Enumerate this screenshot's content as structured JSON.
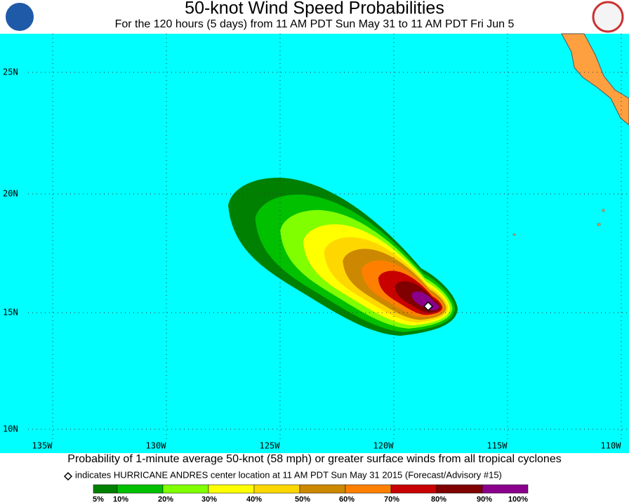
{
  "header": {
    "title": "50-knot Wind Speed Probabilities",
    "subtitle": "For the 120 hours (5 days) from 11 AM PDT Sun May 31 to 11 AM PDT Fri Jun 5"
  },
  "map": {
    "lat_labels": [
      "25N",
      "20N",
      "15N",
      "10N"
    ],
    "lon_labels": [
      "135W",
      "130W",
      "125W",
      "120W",
      "115W",
      "110W"
    ]
  },
  "footer": {
    "caption": "Probability of 1-minute average 50-knot (58 mph) or greater surface winds from all tropical cyclones",
    "note": "indicates HURRICANE ANDRES center location at 11 AM PDT Sun May 31 2015 (Forecast/Advisory #15)"
  },
  "legend": {
    "labels": [
      "5%",
      "10%",
      "20%",
      "30%",
      "40%",
      "50%",
      "60%",
      "70%",
      "80%",
      "90%",
      "100%"
    ],
    "colors": [
      "#008000",
      "#00c000",
      "#80ff00",
      "#ffff00",
      "#ffd700",
      "#cc8800",
      "#ff8000",
      "#c80000",
      "#800000",
      "#8b008b"
    ]
  }
}
